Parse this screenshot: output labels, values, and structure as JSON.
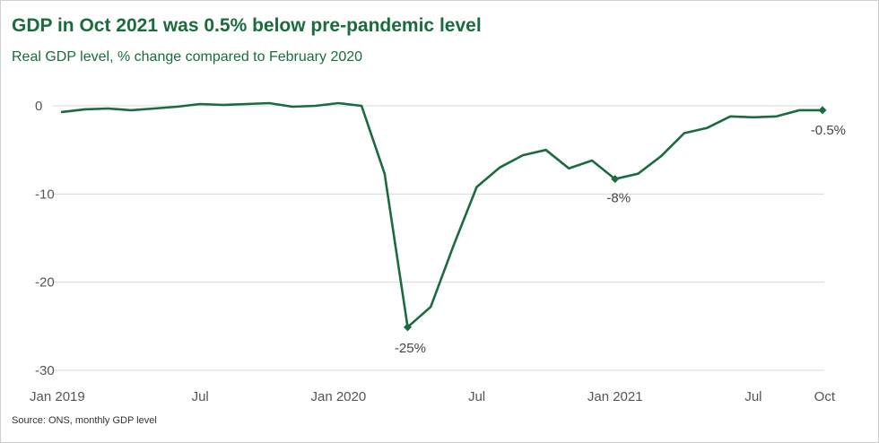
{
  "title": "GDP in Oct 2021 was 0.5% below pre-pandemic level",
  "subtitle": "Real GDP level, % change compared to February 2020",
  "source": "Source: ONS, monthly GDP level",
  "colors": {
    "line": "#1a6b3d",
    "grid": "#d9d9d9",
    "title": "#1a6b3d"
  },
  "chart_data": {
    "type": "line",
    "title": "GDP in Oct 2021 was 0.5% below pre-pandemic level",
    "subtitle": "Real GDP level, % change compared to February 2020",
    "xlabel": "",
    "ylabel": "",
    "ylim": [
      -30,
      0
    ],
    "yticks": [
      0,
      -10,
      -20,
      -30
    ],
    "grid": true,
    "x": [
      "2019-01",
      "2019-02",
      "2019-03",
      "2019-04",
      "2019-05",
      "2019-06",
      "2019-07",
      "2019-08",
      "2019-09",
      "2019-10",
      "2019-11",
      "2019-12",
      "2020-01",
      "2020-02",
      "2020-03",
      "2020-04",
      "2020-05",
      "2020-06",
      "2020-07",
      "2020-08",
      "2020-09",
      "2020-10",
      "2020-11",
      "2020-12",
      "2021-01",
      "2021-02",
      "2021-03",
      "2021-04",
      "2021-05",
      "2021-06",
      "2021-07",
      "2021-08",
      "2021-09",
      "2021-10"
    ],
    "xticks": [
      {
        "x": "2019-01",
        "label": "Jan 2019"
      },
      {
        "x": "2019-07",
        "label": "Jul"
      },
      {
        "x": "2020-01",
        "label": "Jan 2020"
      },
      {
        "x": "2020-07",
        "label": "Jul"
      },
      {
        "x": "2021-01",
        "label": "Jan 2021"
      },
      {
        "x": "2021-07",
        "label": "Jul"
      },
      {
        "x": "2021-10",
        "label": "Oct"
      }
    ],
    "series": [
      {
        "values": [
          -0.7,
          -0.4,
          -0.3,
          -0.5,
          -0.3,
          -0.1,
          0.2,
          0.1,
          0.2,
          0.3,
          -0.1,
          0.0,
          0.3,
          0.0,
          -7.7,
          -25.1,
          -22.8,
          -15.8,
          -9.2,
          -7.0,
          -5.6,
          -5.0,
          -7.1,
          -6.2,
          -8.3,
          -7.7,
          -5.7,
          -3.1,
          -2.5,
          -1.2,
          -1.3,
          -1.2,
          -0.5,
          -0.5
        ]
      }
    ],
    "markers": [
      {
        "x": "2020-04",
        "label": "-25%"
      },
      {
        "x": "2021-01",
        "label": "-8%"
      },
      {
        "x": "2021-10",
        "label": "-0.5%"
      }
    ]
  }
}
